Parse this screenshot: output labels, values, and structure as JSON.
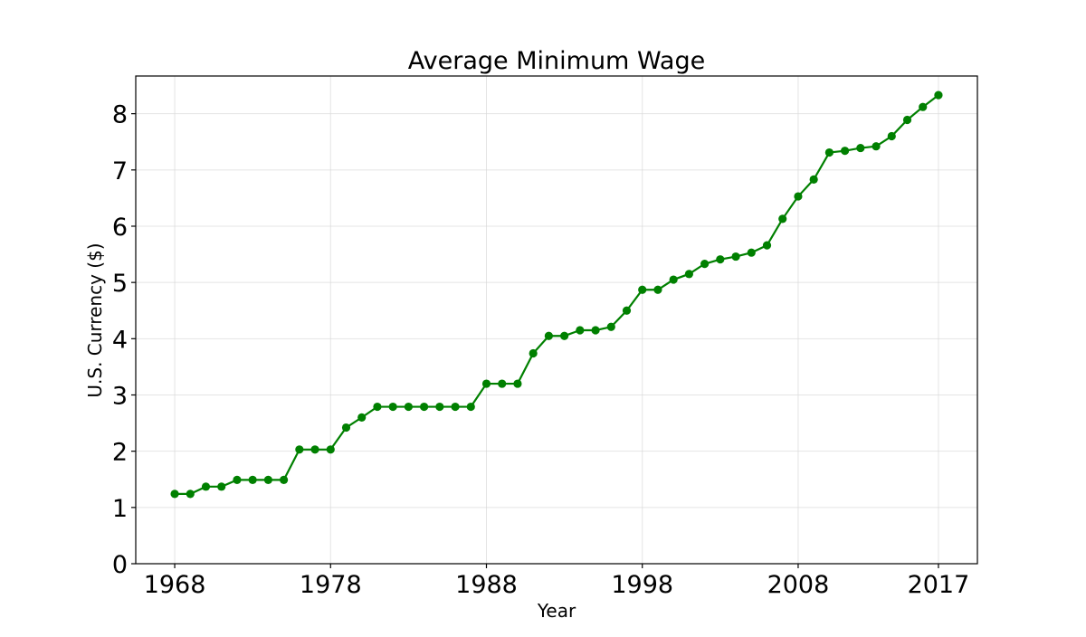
{
  "chart_data": {
    "type": "line",
    "title": "Average Minimum Wage",
    "xlabel": "Year",
    "ylabel": "U.S. Currency ($)",
    "xlim": [
      1965.5,
      2019.5
    ],
    "ylim": [
      0,
      8.67
    ],
    "x_ticks": [
      1968,
      1978,
      1988,
      1998,
      2008,
      2017
    ],
    "y_ticks": [
      0,
      1,
      2,
      3,
      4,
      5,
      6,
      7,
      8
    ],
    "grid": true,
    "legend": "none",
    "markers": true,
    "series": [
      {
        "color": "#008000",
        "x": [
          1968,
          1969,
          1970,
          1971,
          1972,
          1973,
          1974,
          1975,
          1976,
          1977,
          1978,
          1979,
          1980,
          1981,
          1982,
          1983,
          1984,
          1985,
          1986,
          1987,
          1988,
          1989,
          1990,
          1991,
          1992,
          1993,
          1994,
          1995,
          1996,
          1997,
          1998,
          1999,
          2000,
          2001,
          2002,
          2003,
          2004,
          2005,
          2006,
          2007,
          2008,
          2009,
          2010,
          2011,
          2012,
          2013,
          2014,
          2015,
          2016,
          2017
        ],
        "values": [
          1.24,
          1.24,
          1.37,
          1.37,
          1.49,
          1.49,
          1.49,
          1.49,
          2.03,
          2.03,
          2.03,
          2.42,
          2.6,
          2.79,
          2.79,
          2.79,
          2.79,
          2.79,
          2.79,
          2.79,
          3.2,
          3.2,
          3.2,
          3.74,
          4.05,
          4.05,
          4.15,
          4.15,
          4.21,
          4.5,
          4.87,
          4.87,
          5.05,
          5.15,
          5.33,
          5.41,
          5.46,
          5.53,
          5.66,
          6.13,
          6.53,
          6.83,
          7.31,
          7.34,
          7.39,
          7.42,
          7.6,
          7.89,
          8.12,
          8.33
        ]
      }
    ]
  }
}
